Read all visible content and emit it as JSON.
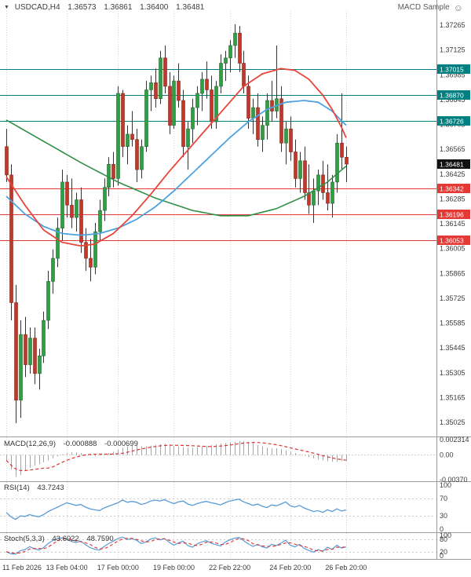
{
  "header": {
    "symbol": "USDCAD,H4",
    "open": "1.36573",
    "high": "1.36861",
    "low": "1.36400",
    "close": "1.36481",
    "ea_name": "MACD Sample"
  },
  "icons": {
    "chart_marker": "▼",
    "ea_smiley": "☺"
  },
  "colors": {
    "background": "#ffffff",
    "bull": "#2f9e44",
    "bull_border": "#1e6b2e",
    "bear": "#c0392b",
    "bear_border": "#82261c",
    "wick": "#333333",
    "ma_fast_red": "#e8453c",
    "ma_mid_blue": "#4da3e0",
    "ma_slow_green": "#2f8f46",
    "resistance_teal": "#008080",
    "support_red": "#e53935",
    "current_price_bg": "#111111",
    "histogram": "#a6a6a6",
    "signal_red": "#e03131",
    "rsi_blue": "#5b9bd5",
    "stoch_k_blue": "#5b9bd5",
    "stoch_d_red": "#e03131",
    "grid": "#d6d6d6",
    "guide": "#c9c9c9",
    "axis_text": "#3c3c3c",
    "separator": "#9a9a9a"
  },
  "price_axis_ticks": [
    "1.37265",
    "1.37125",
    "1.36985",
    "1.36845",
    "1.36705",
    "1.36565",
    "1.36425",
    "1.36285",
    "1.36145",
    "1.36005",
    "1.35865",
    "1.35725",
    "1.35585",
    "1.35445",
    "1.35305",
    "1.35165",
    "1.35025"
  ],
  "levels": {
    "resistance": [
      {
        "price": 1.37015,
        "label": "1.37015"
      },
      {
        "price": 1.3687,
        "label": "1.36870"
      },
      {
        "price": 1.36726,
        "label": "1.36726"
      }
    ],
    "support": [
      {
        "price": 1.36342,
        "label": "1.36342"
      },
      {
        "price": 1.36196,
        "label": "1.36196"
      },
      {
        "price": 1.36053,
        "label": "1.36053"
      }
    ],
    "current": {
      "price": 1.36481,
      "label": "1.36481"
    }
  },
  "time_labels": [
    {
      "text": "11 Feb 2026",
      "bar": 0
    },
    {
      "text": "13 Feb 04:00",
      "bar": 13
    },
    {
      "text": "17 Feb 00:00",
      "bar": 24
    },
    {
      "text": "19 Feb 00:00",
      "bar": 36
    },
    {
      "text": "22 Feb 22:00",
      "bar": 48
    },
    {
      "text": "24 Feb 20:00",
      "bar": 61
    },
    {
      "text": "26 Feb 20:00",
      "bar": 73
    }
  ],
  "panels": {
    "macd": {
      "name": "MACD(12,26,9)",
      "value": "-0.000888",
      "signal": "-0.000699",
      "range": [
        -0.0037,
        0.002314
      ],
      "axis_ticks": [
        {
          "value": 0.002314,
          "label": "0.002314"
        },
        {
          "value": 0,
          "label": "0.00"
        },
        {
          "value": -0.0037,
          "label": "-0.00370"
        }
      ]
    },
    "rsi": {
      "name": "RSI(14)",
      "value": "43.7243",
      "range": [
        0,
        100
      ],
      "guides": [
        70,
        30
      ],
      "axis_ticks": [
        {
          "value": 100,
          "label": "100"
        },
        {
          "value": 70,
          "label": "70"
        },
        {
          "value": 30,
          "label": "30"
        },
        {
          "value": 0,
          "label": "0"
        }
      ]
    },
    "stoch": {
      "name": "Stoch(5,3,3)",
      "value_k": "43.6022",
      "value_d": "48.7590",
      "range": [
        0,
        100
      ],
      "guides": [
        80,
        20
      ],
      "axis_ticks": [
        {
          "value": 100,
          "label": "100"
        },
        {
          "value": 80,
          "label": "80"
        },
        {
          "value": 20,
          "label": "20"
        },
        {
          "value": 0,
          "label": "0"
        }
      ]
    }
  },
  "chart_data": {
    "type": "candlestick",
    "symbol": "USDCAD",
    "timeframe": "H4",
    "y_axis": {
      "top": 1.37265,
      "bottom": 1.35025
    },
    "ohlc": [
      [
        1.3658,
        1.3668,
        1.3638,
        1.3642
      ],
      [
        1.3642,
        1.3648,
        1.356,
        1.357
      ],
      [
        1.357,
        1.358,
        1.3502,
        1.3515
      ],
      [
        1.3515,
        1.356,
        1.3505,
        1.3552
      ],
      [
        1.3552,
        1.3562,
        1.3528,
        1.3535
      ],
      [
        1.3535,
        1.3556,
        1.353,
        1.355
      ],
      [
        1.355,
        1.3556,
        1.3524,
        1.353
      ],
      [
        1.353,
        1.3544,
        1.3521,
        1.354
      ],
      [
        1.354,
        1.3565,
        1.3536,
        1.356
      ],
      [
        1.356,
        1.3588,
        1.3555,
        1.3582
      ],
      [
        1.3582,
        1.36,
        1.3575,
        1.3595
      ],
      [
        1.3595,
        1.3618,
        1.359,
        1.3612
      ],
      [
        1.3612,
        1.3645,
        1.3605,
        1.3638
      ],
      [
        1.3638,
        1.3642,
        1.3618,
        1.3625
      ],
      [
        1.3625,
        1.364,
        1.3612,
        1.3618
      ],
      [
        1.3618,
        1.3632,
        1.361,
        1.3628
      ],
      [
        1.3628,
        1.3635,
        1.3598,
        1.3604
      ],
      [
        1.3604,
        1.3612,
        1.3588,
        1.3595
      ],
      [
        1.3595,
        1.3606,
        1.3582,
        1.359
      ],
      [
        1.359,
        1.3615,
        1.3586,
        1.361
      ],
      [
        1.361,
        1.3628,
        1.3605,
        1.3622
      ],
      [
        1.3622,
        1.364,
        1.3616,
        1.3635
      ],
      [
        1.3635,
        1.3652,
        1.363,
        1.3648
      ],
      [
        1.3648,
        1.3655,
        1.3635,
        1.364
      ],
      [
        1.364,
        1.3692,
        1.3636,
        1.3688
      ],
      [
        1.3688,
        1.369,
        1.3652,
        1.3658
      ],
      [
        1.3658,
        1.367,
        1.3648,
        1.3665
      ],
      [
        1.3665,
        1.3678,
        1.3658,
        1.3662
      ],
      [
        1.3662,
        1.3668,
        1.3638,
        1.3645
      ],
      [
        1.3645,
        1.3662,
        1.364,
        1.3658
      ],
      [
        1.3658,
        1.3695,
        1.3655,
        1.369
      ],
      [
        1.369,
        1.3698,
        1.3678,
        1.3694
      ],
      [
        1.3694,
        1.3702,
        1.368,
        1.3685
      ],
      [
        1.3685,
        1.3712,
        1.3682,
        1.3708
      ],
      [
        1.3708,
        1.3715,
        1.3688,
        1.3692
      ],
      [
        1.3692,
        1.37,
        1.3665,
        1.367
      ],
      [
        1.367,
        1.3698,
        1.3668,
        1.3695
      ],
      [
        1.3695,
        1.3705,
        1.368,
        1.3684
      ],
      [
        1.3684,
        1.369,
        1.3652,
        1.3658
      ],
      [
        1.3658,
        1.3672,
        1.3645,
        1.3668
      ],
      [
        1.3668,
        1.3685,
        1.366,
        1.368
      ],
      [
        1.368,
        1.3692,
        1.367,
        1.3688
      ],
      [
        1.3688,
        1.37,
        1.3678,
        1.3696
      ],
      [
        1.3696,
        1.3706,
        1.3685,
        1.369
      ],
      [
        1.369,
        1.3698,
        1.3668,
        1.3672
      ],
      [
        1.3672,
        1.3695,
        1.3668,
        1.3692
      ],
      [
        1.3692,
        1.371,
        1.3688,
        1.3705
      ],
      [
        1.3705,
        1.3712,
        1.3695,
        1.3708
      ],
      [
        1.3708,
        1.3718,
        1.37,
        1.3715
      ],
      [
        1.3715,
        1.3727,
        1.3708,
        1.3722
      ],
      [
        1.3722,
        1.3726,
        1.37,
        1.3705
      ],
      [
        1.3705,
        1.3712,
        1.3688,
        1.3692
      ],
      [
        1.3692,
        1.3698,
        1.3668,
        1.3674
      ],
      [
        1.3674,
        1.3685,
        1.3665,
        1.368
      ],
      [
        1.368,
        1.3688,
        1.3658,
        1.3662
      ],
      [
        1.3662,
        1.3675,
        1.3655,
        1.367
      ],
      [
        1.367,
        1.3688,
        1.3662,
        1.3684
      ],
      [
        1.3684,
        1.3695,
        1.3672,
        1.3678
      ],
      [
        1.3678,
        1.3715,
        1.3674,
        1.3685
      ],
      [
        1.3685,
        1.3692,
        1.3655,
        1.366
      ],
      [
        1.366,
        1.3672,
        1.3648,
        1.3668
      ],
      [
        1.3668,
        1.3675,
        1.365,
        1.3655
      ],
      [
        1.3655,
        1.3662,
        1.3635,
        1.364
      ],
      [
        1.364,
        1.3655,
        1.3632,
        1.365
      ],
      [
        1.365,
        1.3658,
        1.3628,
        1.3632
      ],
      [
        1.3632,
        1.3648,
        1.362,
        1.3625
      ],
      [
        1.3625,
        1.364,
        1.3615,
        1.3633
      ],
      [
        1.3633,
        1.3645,
        1.3625,
        1.3642
      ],
      [
        1.3642,
        1.365,
        1.3628,
        1.3632
      ],
      [
        1.3632,
        1.3648,
        1.3622,
        1.3626
      ],
      [
        1.3626,
        1.3642,
        1.3618,
        1.3638
      ],
      [
        1.3638,
        1.3665,
        1.3632,
        1.366
      ],
      [
        1.366,
        1.3688,
        1.3645,
        1.3652
      ],
      [
        1.3652,
        1.3658,
        1.3638,
        1.36481
      ]
    ],
    "moving_averages": [
      {
        "name": "slow-green",
        "points": [
          [
            0,
            1.3673
          ],
          [
            8,
            1.3661
          ],
          [
            16,
            1.3649
          ],
          [
            24,
            1.3638
          ],
          [
            32,
            1.3629
          ],
          [
            40,
            1.3622
          ],
          [
            46,
            1.3619
          ],
          [
            52,
            1.3619
          ],
          [
            58,
            1.3623
          ],
          [
            64,
            1.363
          ],
          [
            69,
            1.3638
          ],
          [
            73,
            1.3647
          ]
        ]
      },
      {
        "name": "mid-blue",
        "points": [
          [
            0,
            1.363
          ],
          [
            4,
            1.362
          ],
          [
            8,
            1.3613
          ],
          [
            12,
            1.3609
          ],
          [
            16,
            1.3608
          ],
          [
            20,
            1.3609
          ],
          [
            24,
            1.3612
          ],
          [
            28,
            1.3617
          ],
          [
            32,
            1.3624
          ],
          [
            36,
            1.3633
          ],
          [
            40,
            1.3643
          ],
          [
            44,
            1.3653
          ],
          [
            48,
            1.3663
          ],
          [
            52,
            1.3672
          ],
          [
            56,
            1.3679
          ],
          [
            60,
            1.3683
          ],
          [
            64,
            1.3684
          ],
          [
            67,
            1.3683
          ],
          [
            70,
            1.3678
          ],
          [
            73,
            1.367
          ]
        ]
      },
      {
        "name": "fast-red",
        "points": [
          [
            0,
            1.3641
          ],
          [
            4,
            1.3625
          ],
          [
            8,
            1.3611
          ],
          [
            12,
            1.3604
          ],
          [
            16,
            1.3602
          ],
          [
            19,
            1.3603
          ],
          [
            23,
            1.3609
          ],
          [
            27,
            1.3619
          ],
          [
            31,
            1.3631
          ],
          [
            35,
            1.3644
          ],
          [
            39,
            1.3656
          ],
          [
            43,
            1.3668
          ],
          [
            47,
            1.368
          ],
          [
            51,
            1.3692
          ],
          [
            55,
            1.3699
          ],
          [
            59,
            1.3702
          ],
          [
            62,
            1.3701
          ],
          [
            65,
            1.3696
          ],
          [
            68,
            1.3687
          ],
          [
            70,
            1.3679
          ],
          [
            72,
            1.3669
          ],
          [
            73,
            1.3663
          ]
        ]
      }
    ],
    "macd": [
      -0.0008,
      -0.0022,
      -0.0033,
      -0.003,
      -0.0024,
      -0.0019,
      -0.0016,
      -0.0014,
      -0.0011,
      -0.0008,
      -0.0005,
      -0.0002,
      0.0001,
      0.0003,
      0.0004,
      0.0004,
      0.0003,
      0.0001,
      -0.0001,
      -0.0002,
      -0.0001,
      0.0001,
      0.0003,
      0.0005,
      0.0008,
      0.0011,
      0.0013,
      0.0014,
      0.0014,
      0.0013,
      0.0013,
      0.0014,
      0.0015,
      0.0016,
      0.0017,
      0.0016,
      0.0014,
      0.0013,
      0.0012,
      0.0011,
      0.0011,
      0.0012,
      0.0013,
      0.0014,
      0.0015,
      0.0016,
      0.0017,
      0.0018,
      0.0019,
      0.002,
      0.0021,
      0.0021,
      0.002,
      0.0018,
      0.0015,
      0.0013,
      0.0011,
      0.001,
      0.001,
      0.0009,
      0.0007,
      0.0005,
      0.0003,
      0.0001,
      -0.0001,
      -0.0003,
      -0.0005,
      -0.0007,
      -0.0008,
      -0.0009,
      -0.001,
      -0.001,
      -0.0009,
      -0.000888
    ],
    "rsi": [
      38,
      28,
      22,
      30,
      29,
      33,
      30,
      28,
      33,
      40,
      45,
      50,
      55,
      60,
      57,
      54,
      56,
      50,
      46,
      44,
      42,
      48,
      52,
      56,
      60,
      66,
      61,
      63,
      61,
      56,
      59,
      64,
      66,
      64,
      67,
      62,
      58,
      62,
      64,
      57,
      54,
      58,
      61,
      63,
      60,
      58,
      55,
      60,
      64,
      66,
      68,
      62,
      58,
      54,
      57,
      52,
      49,
      55,
      53,
      57,
      62,
      53,
      50,
      54,
      48,
      44,
      40,
      42,
      38,
      44,
      40,
      46,
      41,
      43.7
    ],
    "stoch_k": [
      20,
      10,
      8,
      25,
      30,
      45,
      35,
      28,
      40,
      60,
      75,
      85,
      88,
      82,
      70,
      65,
      72,
      55,
      40,
      32,
      28,
      45,
      60,
      72,
      85,
      92,
      80,
      84,
      76,
      60,
      68,
      82,
      88,
      78,
      84,
      66,
      52,
      64,
      72,
      50,
      42,
      58,
      68,
      74,
      62,
      55,
      48,
      66,
      78,
      86,
      90,
      74,
      58,
      46,
      56,
      44,
      38,
      56,
      50,
      62,
      76,
      52,
      44,
      56,
      36,
      26,
      18,
      30,
      22,
      42,
      32,
      52,
      38,
      43.6
    ]
  }
}
